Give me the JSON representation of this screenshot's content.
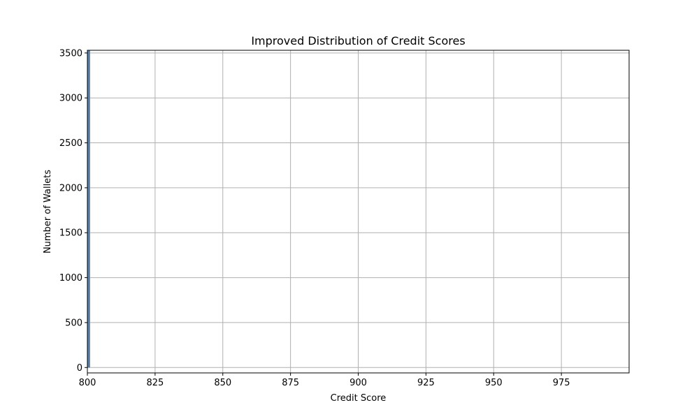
{
  "chart_data": {
    "type": "bar",
    "title": "Improved Distribution of Credit Scores",
    "xlabel": "Credit Score",
    "ylabel": "Number of Wallets",
    "xlim": [
      800,
      1000
    ],
    "ylim": [
      -60,
      3530
    ],
    "xticks": [
      800,
      825,
      850,
      875,
      900,
      925,
      950,
      975
    ],
    "yticks": [
      0,
      500,
      1000,
      1500,
      2000,
      2500,
      3000,
      3500
    ],
    "grid": true,
    "bins": [
      {
        "x0": 800,
        "x1": 801,
        "count": 3530
      }
    ]
  }
}
